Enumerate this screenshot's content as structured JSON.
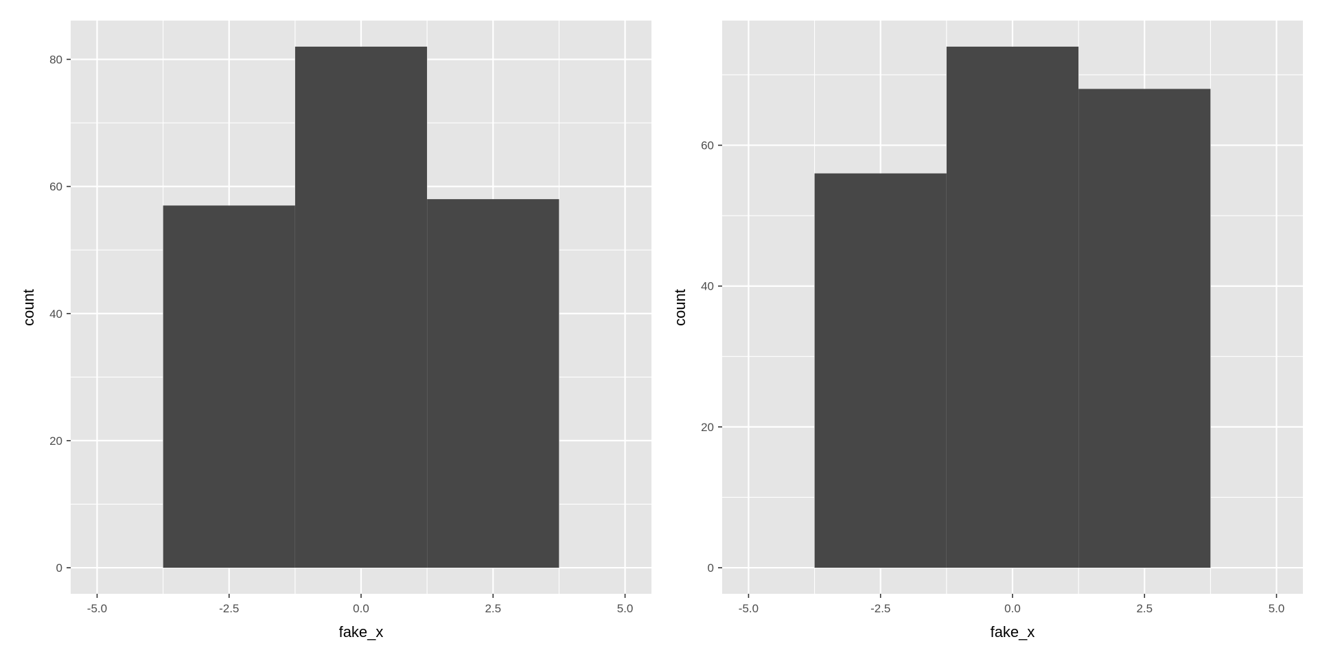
{
  "chart_data": [
    {
      "type": "bar",
      "subtype": "histogram",
      "title": "",
      "xlabel": "fake_x",
      "ylabel": "count",
      "xlim": [
        -5.5,
        5.5
      ],
      "ylim": [
        -4.1,
        86.1
      ],
      "xticks": [
        -5.0,
        -2.5,
        0.0,
        2.5,
        5.0
      ],
      "xtick_labels": [
        "-5.0",
        "-2.5",
        "0.0",
        "2.5",
        "5.0"
      ],
      "yticks": [
        0,
        20,
        40,
        60,
        80
      ],
      "ytick_labels": [
        "0",
        "20",
        "40",
        "60",
        "80"
      ],
      "bins": [
        {
          "x_start": -3.75,
          "x_end": -1.25,
          "count": 57
        },
        {
          "x_start": -1.25,
          "x_end": 1.25,
          "count": 82
        },
        {
          "x_start": 1.25,
          "x_end": 3.75,
          "count": 58
        }
      ],
      "grid": true,
      "legend": "none",
      "colors": {
        "panel_bg": "#e5e5e5",
        "grid": "#ffffff",
        "bar": "#474747"
      }
    },
    {
      "type": "bar",
      "subtype": "histogram",
      "title": "",
      "xlabel": "fake_x",
      "ylabel": "count",
      "xlim": [
        -5.5,
        5.5
      ],
      "ylim": [
        -3.7,
        77.7
      ],
      "xticks": [
        -5.0,
        -2.5,
        0.0,
        2.5,
        5.0
      ],
      "xtick_labels": [
        "-5.0",
        "-2.5",
        "0.0",
        "2.5",
        "5.0"
      ],
      "yticks": [
        0,
        20,
        40,
        60
      ],
      "ytick_labels": [
        "0",
        "20",
        "40",
        "60"
      ],
      "bins": [
        {
          "x_start": -3.75,
          "x_end": -1.25,
          "count": 56
        },
        {
          "x_start": -1.25,
          "x_end": 1.25,
          "count": 74
        },
        {
          "x_start": 1.25,
          "x_end": 3.75,
          "count": 68
        }
      ],
      "grid": true,
      "legend": "none",
      "colors": {
        "panel_bg": "#e5e5e5",
        "grid": "#ffffff",
        "bar": "#474747"
      }
    }
  ]
}
